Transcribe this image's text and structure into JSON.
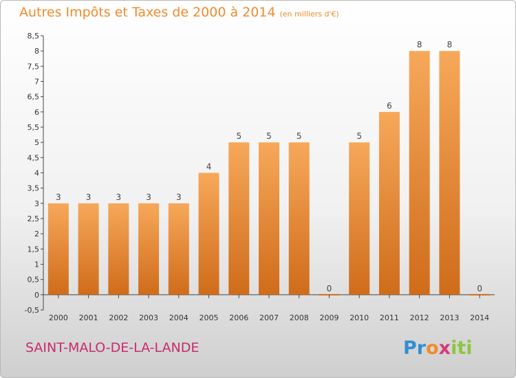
{
  "header": {
    "title": "Autres Impôts et Taxes de 2000 à 2014",
    "unit": "(en milliers d'€)"
  },
  "footer": {
    "place": "SAINT-MALO-DE-LA-LANDE",
    "logo_parts": [
      "Pr",
      "o",
      "x",
      "iti"
    ]
  },
  "colors": {
    "bar_light": "#f7a85a",
    "bar_dark": "#cf6c1a",
    "title": "#f28a2c",
    "place": "#c92a6b"
  },
  "chart_data": {
    "type": "bar",
    "title": "Autres Impôts et Taxes de 2000 à 2014",
    "xlabel": "",
    "ylabel": "",
    "categories": [
      "2000",
      "2001",
      "2002",
      "2003",
      "2004",
      "2005",
      "2006",
      "2007",
      "2008",
      "2009",
      "2010",
      "2011",
      "2012",
      "2013",
      "2014"
    ],
    "values": [
      3,
      3,
      3,
      3,
      3,
      4,
      5,
      5,
      5,
      0,
      5,
      6,
      8,
      8,
      0
    ],
    "ylim": [
      -0.5,
      8.5
    ],
    "yticks": [
      "-0,5",
      "0",
      "0,5",
      "1",
      "1,5",
      "2",
      "2,5",
      "3",
      "3,5",
      "4",
      "4,5",
      "5",
      "5,5",
      "6",
      "6,5",
      "7",
      "7,5",
      "8",
      "8,5"
    ],
    "grid": false
  }
}
